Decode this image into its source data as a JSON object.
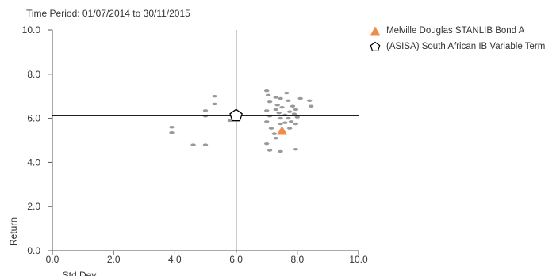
{
  "time_period": "Time Period: 01/07/2014 to 30/11/2015",
  "colors": {
    "fund": "#f08c4a",
    "peer": "#999999",
    "crosshair": "#000000",
    "axis": "#555555",
    "text": "#333333"
  },
  "chart_data": {
    "type": "scatter",
    "xlabel": "Std Dev",
    "ylabel": "Return",
    "xlim": [
      0,
      10
    ],
    "ylim": [
      0,
      10
    ],
    "x_ticks": [
      "0.0",
      "2.0",
      "4.0",
      "6.0",
      "8.0",
      "10.0"
    ],
    "y_ticks": [
      "0.0",
      "2.0",
      "4.0",
      "6.0",
      "8.0",
      "10.0"
    ],
    "grid": false,
    "legend_position": "top-right",
    "crosshair": {
      "x": 6.0,
      "y": 6.12
    },
    "series": [
      {
        "name": "Melville Douglas STANLIB Bond A",
        "marker": "triangle",
        "points": [
          {
            "x": 7.5,
            "y": 5.45
          }
        ]
      },
      {
        "name": "(ASISA) South African IB Variable Term",
        "marker": "pentagon",
        "points": [
          {
            "x": 6.0,
            "y": 6.12
          }
        ]
      },
      {
        "name": "",
        "marker": "dot",
        "points": [
          {
            "x": 3.9,
            "y": 5.6
          },
          {
            "x": 3.9,
            "y": 5.35
          },
          {
            "x": 4.6,
            "y": 4.8
          },
          {
            "x": 5.0,
            "y": 4.8
          },
          {
            "x": 5.0,
            "y": 6.1
          },
          {
            "x": 5.0,
            "y": 6.35
          },
          {
            "x": 5.3,
            "y": 6.65
          },
          {
            "x": 5.3,
            "y": 7.0
          },
          {
            "x": 5.8,
            "y": 5.9
          },
          {
            "x": 7.0,
            "y": 7.25
          },
          {
            "x": 7.05,
            "y": 7.05
          },
          {
            "x": 7.1,
            "y": 6.75
          },
          {
            "x": 7.0,
            "y": 6.35
          },
          {
            "x": 7.1,
            "y": 6.1
          },
          {
            "x": 7.0,
            "y": 5.85
          },
          {
            "x": 7.15,
            "y": 5.55
          },
          {
            "x": 7.0,
            "y": 4.85
          },
          {
            "x": 7.1,
            "y": 4.55
          },
          {
            "x": 7.25,
            "y": 5.3
          },
          {
            "x": 7.3,
            "y": 6.95
          },
          {
            "x": 7.35,
            "y": 6.6
          },
          {
            "x": 7.3,
            "y": 6.4
          },
          {
            "x": 7.45,
            "y": 6.9
          },
          {
            "x": 7.4,
            "y": 6.25
          },
          {
            "x": 7.5,
            "y": 6.5
          },
          {
            "x": 7.45,
            "y": 6.0
          },
          {
            "x": 7.45,
            "y": 5.75
          },
          {
            "x": 7.3,
            "y": 5.1
          },
          {
            "x": 7.45,
            "y": 4.5
          },
          {
            "x": 7.6,
            "y": 5.8
          },
          {
            "x": 7.6,
            "y": 6.15
          },
          {
            "x": 7.65,
            "y": 7.15
          },
          {
            "x": 7.7,
            "y": 6.8
          },
          {
            "x": 7.75,
            "y": 6.3
          },
          {
            "x": 7.7,
            "y": 6.0
          },
          {
            "x": 7.85,
            "y": 6.55
          },
          {
            "x": 7.8,
            "y": 5.85
          },
          {
            "x": 7.75,
            "y": 5.55
          },
          {
            "x": 7.9,
            "y": 6.2
          },
          {
            "x": 7.95,
            "y": 6.4
          },
          {
            "x": 8.0,
            "y": 6.05
          },
          {
            "x": 7.95,
            "y": 5.75
          },
          {
            "x": 8.1,
            "y": 6.9
          },
          {
            "x": 7.95,
            "y": 4.6
          },
          {
            "x": 8.4,
            "y": 6.8
          },
          {
            "x": 8.45,
            "y": 6.55
          }
        ]
      }
    ]
  }
}
